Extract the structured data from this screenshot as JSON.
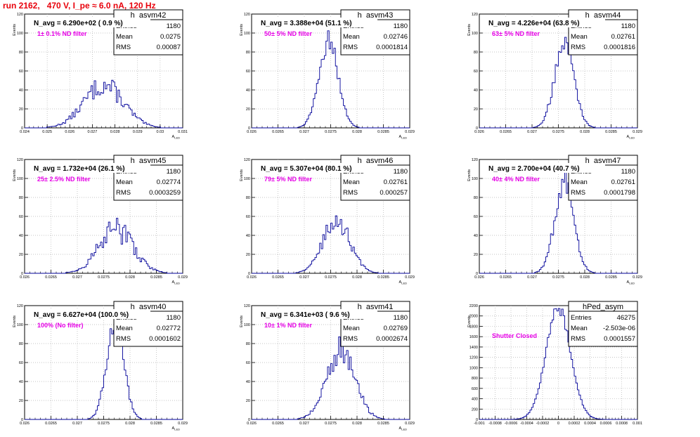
{
  "title": "run 2162,   470 V, I_pe ≈ 6.0 nA, 120 Hz",
  "colors": {
    "title": "#e8000b",
    "annotation": "#e600e6",
    "histogram": "#000099",
    "text": "#000000",
    "grid": "#b4b4b4"
  },
  "chart_data": [
    {
      "type": "bar",
      "name": "h_asym42",
      "navg": "N_avg = 6.290e+02 ( 0.9 %)",
      "note": "1± 0.1% ND filter",
      "stats": [
        [
          "Entries",
          "1180"
        ],
        [
          "Mean",
          "0.0275"
        ],
        [
          "RMS",
          "0.00087"
        ]
      ],
      "ylabel": "Events",
      "xlabel": "A_{LED}",
      "xlim": [
        0.024,
        0.031
      ],
      "ylim": [
        0,
        120
      ],
      "xticks": [
        "0.024",
        "0.025",
        "0.026",
        "0.027",
        "0.028",
        "0.029",
        "0.03",
        "0.031"
      ],
      "yticks": [
        "0",
        "20",
        "40",
        "60",
        "80",
        "100",
        "120"
      ],
      "grid": true,
      "mean": 0.0275,
      "sigma": 0.00087,
      "peak": 45,
      "noise": 0.25
    },
    {
      "type": "bar",
      "name": "h_asym43",
      "navg": "N_avg = 3.388e+04 (51.1 %)",
      "note": "50± 5% ND filter",
      "stats": [
        [
          "Entries",
          "1180"
        ],
        [
          "Mean",
          "0.02746"
        ],
        [
          "RMS",
          "0.0001814"
        ]
      ],
      "ylabel": "Events",
      "xlabel": "A_{LED}",
      "xlim": [
        0.026,
        0.029
      ],
      "ylim": [
        0,
        120
      ],
      "xticks": [
        "0.026",
        "0.0265",
        "0.027",
        "0.0275",
        "0.028",
        "0.0285",
        "0.029"
      ],
      "yticks": [
        "0",
        "20",
        "40",
        "60",
        "80",
        "100",
        "120"
      ],
      "grid": true,
      "mean": 0.02746,
      "sigma": 0.0001814,
      "peak": 92,
      "noise": 0.12
    },
    {
      "type": "bar",
      "name": "h_asym44",
      "navg": "N_avg = 4.226e+04 (63.8 %)",
      "note": "63± 5% ND filter",
      "stats": [
        [
          "Entries",
          "1180"
        ],
        [
          "Mean",
          "0.02761"
        ],
        [
          "RMS",
          "0.0001816"
        ]
      ],
      "ylabel": "Events",
      "xlabel": "A_{LED}",
      "xlim": [
        0.026,
        0.029
      ],
      "ylim": [
        0,
        120
      ],
      "xticks": [
        "0.026",
        "0.0265",
        "0.027",
        "0.0275",
        "0.028",
        "0.0285",
        "0.029"
      ],
      "yticks": [
        "0",
        "20",
        "40",
        "60",
        "80",
        "100",
        "120"
      ],
      "grid": true,
      "mean": 0.02761,
      "sigma": 0.0001816,
      "peak": 90,
      "noise": 0.12
    },
    {
      "type": "bar",
      "name": "h_asym45",
      "navg": "N_avg = 1.732e+04 (26.1 %)",
      "note": "25± 2.5% ND filter",
      "stats": [
        [
          "Entries",
          "1180"
        ],
        [
          "Mean",
          "0.02774"
        ],
        [
          "RMS",
          "0.0003259"
        ]
      ],
      "ylabel": "Events",
      "xlabel": "A_{LED}",
      "xlim": [
        0.026,
        0.029
      ],
      "ylim": [
        0,
        120
      ],
      "xticks": [
        "0.026",
        "0.0265",
        "0.027",
        "0.0275",
        "0.028",
        "0.0285",
        "0.029"
      ],
      "yticks": [
        "0",
        "20",
        "40",
        "60",
        "80",
        "100",
        "120"
      ],
      "grid": true,
      "mean": 0.02774,
      "sigma": 0.0003259,
      "peak": 46,
      "noise": 0.3
    },
    {
      "type": "bar",
      "name": "h_asym46",
      "navg": "N_avg = 5.307e+04 (80.1 %)",
      "note": "79± 5% ND filter",
      "stats": [
        [
          "Entries",
          "1180"
        ],
        [
          "Mean",
          "0.02761"
        ],
        [
          "RMS",
          "0.000257"
        ]
      ],
      "ylabel": "Events",
      "xlabel": "A_{LED}",
      "xlim": [
        0.026,
        0.029
      ],
      "ylim": [
        0,
        120
      ],
      "xticks": [
        "0.026",
        "0.0265",
        "0.027",
        "0.0275",
        "0.028",
        "0.0285",
        "0.029"
      ],
      "yticks": [
        "0",
        "20",
        "40",
        "60",
        "80",
        "100",
        "120"
      ],
      "grid": true,
      "mean": 0.02761,
      "sigma": 0.000257,
      "peak": 55,
      "noise": 0.2
    },
    {
      "type": "bar",
      "name": "h_asym47",
      "navg": "N_avg = 2.700e+04 (40.7 %)",
      "note": "40± 4% ND filter",
      "stats": [
        [
          "Entries",
          "1180"
        ],
        [
          "Mean",
          "0.02761"
        ],
        [
          "RMS",
          "0.0001798"
        ]
      ],
      "ylabel": "Events",
      "xlabel": "A_{LED}",
      "xlim": [
        0.026,
        0.029
      ],
      "ylim": [
        0,
        120
      ],
      "xticks": [
        "0.026",
        "0.0265",
        "0.027",
        "0.0275",
        "0.028",
        "0.0285",
        "0.029"
      ],
      "yticks": [
        "0",
        "20",
        "40",
        "60",
        "80",
        "100",
        "120"
      ],
      "grid": true,
      "mean": 0.02761,
      "sigma": 0.0001798,
      "peak": 95,
      "noise": 0.15
    },
    {
      "type": "bar",
      "name": "h_asym40",
      "navg": "N_avg = 6.627e+04 (100.0 %)",
      "note": "100% (No filter)",
      "stats": [
        [
          "Entries",
          "1180"
        ],
        [
          "Mean",
          "0.02772"
        ],
        [
          "RMS",
          "0.0001602"
        ]
      ],
      "ylabel": "Events",
      "xlabel": "A_{LED}",
      "xlim": [
        0.026,
        0.029
      ],
      "ylim": [
        0,
        120
      ],
      "xticks": [
        "0.026",
        "0.0265",
        "0.027",
        "0.0275",
        "0.028",
        "0.0285",
        "0.029"
      ],
      "yticks": [
        "0",
        "20",
        "40",
        "60",
        "80",
        "100",
        "120"
      ],
      "grid": true,
      "mean": 0.02772,
      "sigma": 0.0001602,
      "peak": 105,
      "noise": 0.12
    },
    {
      "type": "bar",
      "name": "h_asym41",
      "navg": "N_avg = 6.341e+03 ( 9.6 %)",
      "note": "10± 1% ND filter",
      "stats": [
        [
          "Entries",
          "1180"
        ],
        [
          "Mean",
          "0.02769"
        ],
        [
          "RMS",
          "0.0002674"
        ]
      ],
      "ylabel": "Events",
      "xlabel": "A_{LED}",
      "xlim": [
        0.026,
        0.029
      ],
      "ylim": [
        0,
        120
      ],
      "xticks": [
        "0.026",
        "0.0265",
        "0.027",
        "0.0275",
        "0.028",
        "0.0285",
        "0.029"
      ],
      "yticks": [
        "0",
        "20",
        "40",
        "60",
        "80",
        "100",
        "120"
      ],
      "grid": true,
      "mean": 0.02769,
      "sigma": 0.0002674,
      "peak": 72,
      "noise": 0.22
    },
    {
      "type": "bar",
      "name": "hPed_asym",
      "navg": "",
      "note": "Shutter Closed",
      "stats": [
        [
          "Entries",
          "46275"
        ],
        [
          "Mean",
          "-2.503e-06"
        ],
        [
          "RMS",
          "0.0001557"
        ]
      ],
      "ylabel": "Events",
      "xlabel": "",
      "xlim": [
        -0.001,
        0.001
      ],
      "ylim": [
        0,
        2200
      ],
      "xticks": [
        "-0.001",
        "-0.0008",
        "-0.0006",
        "-0.0004",
        "-0.0002",
        "0",
        "0.0002",
        "0.0004",
        "0.0006",
        "0.0008",
        "0.001"
      ],
      "yticks": [
        "0",
        "200",
        "400",
        "600",
        "800",
        "1000",
        "1200",
        "1400",
        "1600",
        "1800",
        "2000",
        "2200"
      ],
      "grid": true,
      "mean": -2.5e-06,
      "sigma": 0.0001557,
      "peak": 2150,
      "noise": 0.05
    }
  ]
}
